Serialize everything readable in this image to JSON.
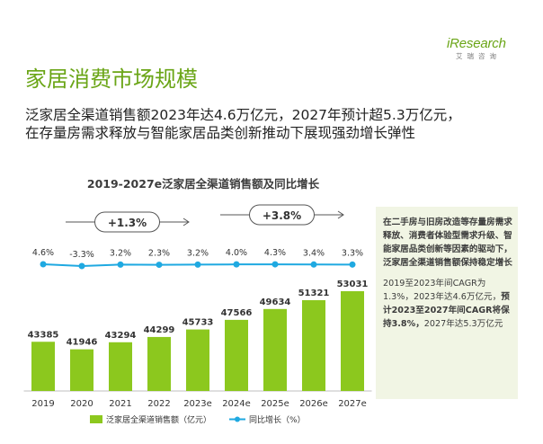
{
  "logo": {
    "word": "iResearch",
    "sub": "艾瑞咨询"
  },
  "header": {
    "title": "家居消费市场规模",
    "subtitle_line1": "泛家居全渠道销售额2023年达4.6万亿元，2027年预计超5.3万亿元，",
    "subtitle_line2": "在存量房需求释放与智能家居品类创新推动下展现强劲增长弹性"
  },
  "side_box": {
    "lead": "在二手房与旧房改造等存量房需求释放、消费者体验型需求升级、智能家居品类创新等因素的驱动下，泛家居全渠道销售额保持稳定增长",
    "text_before": "2019至2023年间CAGR为1.3%，2023年达4.6万亿元，",
    "text_bold": "预计2023至2027年间CAGR将保持3.8%，",
    "text_after": "2027年达5.3万亿元"
  },
  "colors": {
    "bar": "#8cc81e",
    "line": "#1fa9e1",
    "accent": "#6aa516"
  },
  "chart_data": {
    "type": "bar",
    "title": "2019-2027e泛家居全渠道销售额及同比增长",
    "categories": [
      "2019",
      "2020",
      "2021",
      "2022",
      "2023e",
      "2024e",
      "2025e",
      "2026e",
      "2027e"
    ],
    "series": [
      {
        "name": "泛家居全渠道销售额（亿元）",
        "type": "bar",
        "values": [
          43385,
          41946,
          43294,
          44299,
          45733,
          47566,
          49634,
          51321,
          53031
        ]
      },
      {
        "name": "同比增长（%）",
        "type": "line",
        "values": [
          4.6,
          -3.3,
          3.2,
          2.3,
          3.2,
          4.0,
          4.3,
          3.4,
          3.3
        ],
        "labels": [
          "4.6%",
          "-3.3%",
          "3.2%",
          "2.3%",
          "3.2%",
          "4.0%",
          "4.3%",
          "3.4%",
          "3.3%"
        ]
      }
    ],
    "cagr_annotations": [
      {
        "label": "+1.3%",
        "from": "2019",
        "to": "2023e"
      },
      {
        "label": "+3.8%",
        "from": "2023e",
        "to": "2027e"
      }
    ]
  }
}
